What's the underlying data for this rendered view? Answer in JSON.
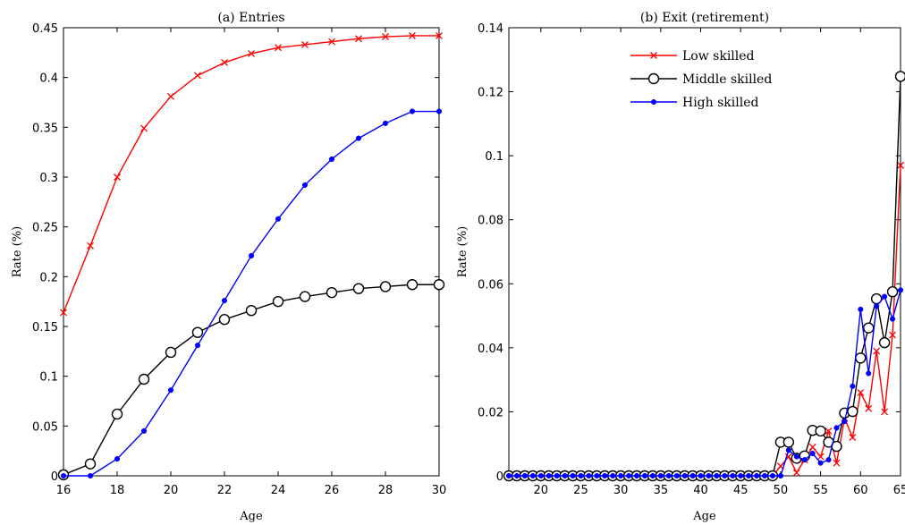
{
  "chart_data": [
    {
      "type": "line",
      "title": "(a) Entries",
      "xlabel": "Age",
      "ylabel": "Rate (%)",
      "xlim": [
        16,
        30
      ],
      "ylim": [
        0,
        0.45
      ],
      "xticks": [
        16,
        18,
        20,
        22,
        24,
        26,
        28,
        30
      ],
      "yticks": [
        0,
        0.05,
        0.1,
        0.15,
        0.2,
        0.25,
        0.3,
        0.35,
        0.4,
        0.45
      ],
      "ytick_labels": [
        "0",
        "0.05",
        "0.1",
        "0.15",
        "0.2",
        "0.25",
        "0.3",
        "0.35",
        "0.4",
        "0.45"
      ],
      "x": [
        16,
        17,
        18,
        19,
        20,
        21,
        22,
        23,
        24,
        25,
        26,
        27,
        28,
        29,
        30
      ],
      "series": [
        {
          "name": "Low skilled",
          "color": "#ff0000",
          "marker": "x",
          "values": [
            0.164,
            0.231,
            0.3,
            0.349,
            0.381,
            0.402,
            0.415,
            0.424,
            0.43,
            0.433,
            0.436,
            0.439,
            0.441,
            0.442,
            0.442
          ]
        },
        {
          "name": "Middle skilled",
          "color": "#000000",
          "marker": "circle",
          "values": [
            0.001,
            0.012,
            0.062,
            0.097,
            0.124,
            0.144,
            0.157,
            0.166,
            0.175,
            0.18,
            0.184,
            0.188,
            0.19,
            0.192,
            0.192
          ]
        },
        {
          "name": "High skilled",
          "color": "#0000ff",
          "marker": "dot",
          "values": [
            0.0,
            0.0,
            0.017,
            0.045,
            0.086,
            0.131,
            0.176,
            0.221,
            0.258,
            0.292,
            0.318,
            0.339,
            0.354,
            0.366,
            0.366
          ]
        }
      ],
      "grid": false,
      "legend": "none"
    },
    {
      "type": "line",
      "title": "(b) Exit (retirement)",
      "xlabel": "Age",
      "ylabel": "Rate (%)",
      "xlim": [
        16,
        65
      ],
      "ylim": [
        0,
        0.14
      ],
      "xticks": [
        20,
        25,
        30,
        35,
        40,
        45,
        50,
        55,
        60,
        65
      ],
      "yticks": [
        0,
        0.02,
        0.04,
        0.06,
        0.08,
        0.1,
        0.12,
        0.14
      ],
      "ytick_labels": [
        "0",
        "0.02",
        "0.04",
        "0.06",
        "0.08",
        "0.1",
        "0.12",
        "0.14"
      ],
      "x": [
        16,
        17,
        18,
        19,
        20,
        21,
        22,
        23,
        24,
        25,
        26,
        27,
        28,
        29,
        30,
        31,
        32,
        33,
        34,
        35,
        36,
        37,
        38,
        39,
        40,
        41,
        42,
        43,
        44,
        45,
        46,
        47,
        48,
        49,
        50,
        51,
        52,
        53,
        54,
        55,
        56,
        57,
        58,
        59,
        60,
        61,
        62,
        63,
        64,
        65
      ],
      "series": [
        {
          "name": "Low skilled",
          "color": "#ff0000",
          "marker": "x",
          "values": [
            0,
            0,
            0,
            0,
            0,
            0,
            0,
            0,
            0,
            0,
            0,
            0,
            0,
            0,
            0,
            0,
            0,
            0,
            0,
            0,
            0,
            0,
            0,
            0,
            0,
            0,
            0,
            0,
            0,
            0,
            0,
            0,
            0,
            0,
            0.003,
            0.006,
            0.001,
            0.005,
            0.009,
            0.006,
            0.014,
            0.004,
            0.018,
            0.012,
            0.026,
            0.021,
            0.039,
            0.02,
            0.044,
            0.097
          ]
        },
        {
          "name": "Middle skilled",
          "color": "#000000",
          "marker": "circle",
          "values": [
            0,
            0,
            0,
            0,
            0,
            0,
            0,
            0,
            0,
            0,
            0,
            0,
            0,
            0,
            0,
            0,
            0,
            0,
            0,
            0,
            0,
            0,
            0,
            0,
            0,
            0,
            0,
            0,
            0,
            0,
            0,
            0,
            0,
            0,
            0.0105,
            0.0105,
            0.0055,
            0.0062,
            0.0142,
            0.014,
            0.0105,
            0.0092,
            0.0196,
            0.0201,
            0.0368,
            0.0462,
            0.0553,
            0.0416,
            0.0575,
            0.1248
          ]
        },
        {
          "name": "High skilled",
          "color": "#0000ff",
          "marker": "dot",
          "values": [
            0,
            0,
            0,
            0,
            0,
            0,
            0,
            0,
            0,
            0,
            0,
            0,
            0,
            0,
            0,
            0,
            0,
            0,
            0,
            0,
            0,
            0,
            0,
            0,
            0,
            0,
            0,
            0,
            0,
            0,
            0,
            0,
            0,
            0,
            0.0,
            0.008,
            0.006,
            0.005,
            0.007,
            0.004,
            0.005,
            0.015,
            0.017,
            0.028,
            0.052,
            0.032,
            0.053,
            0.056,
            0.049,
            0.058
          ]
        }
      ],
      "grid": false,
      "legend": "top-center"
    }
  ]
}
